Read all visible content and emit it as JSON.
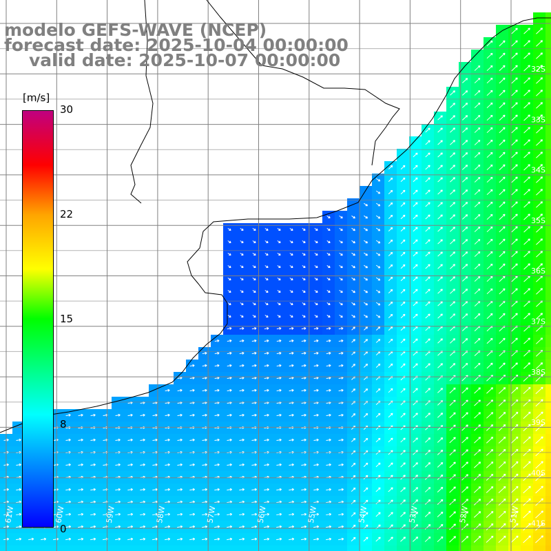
{
  "title": {
    "line1": "modelo GEFS-WAVE (NCEP)",
    "line2": "forecast date: 2025-10-04 00:00:00",
    "line3": "valid date: 2025-10-07 00:00:00"
  },
  "colorbar": {
    "units": "[m/s]",
    "ticks": [
      "30",
      "22",
      "15",
      "8",
      "0"
    ],
    "range": [
      0,
      30
    ],
    "colors": [
      "#0000ff",
      "#00ffff",
      "#00ff00",
      "#ffff00",
      "#ffa500",
      "#ff0000",
      "#c00080"
    ]
  },
  "grid": {
    "lat_labels": [
      "32S",
      "33S",
      "34S",
      "35S",
      "36S",
      "37S",
      "38S",
      "39S",
      "40S",
      "41S"
    ],
    "lon_labels": [
      "61W",
      "60W",
      "59W",
      "58W",
      "57W",
      "56W",
      "55W",
      "54W",
      "53W",
      "52W",
      "51W"
    ]
  }
}
